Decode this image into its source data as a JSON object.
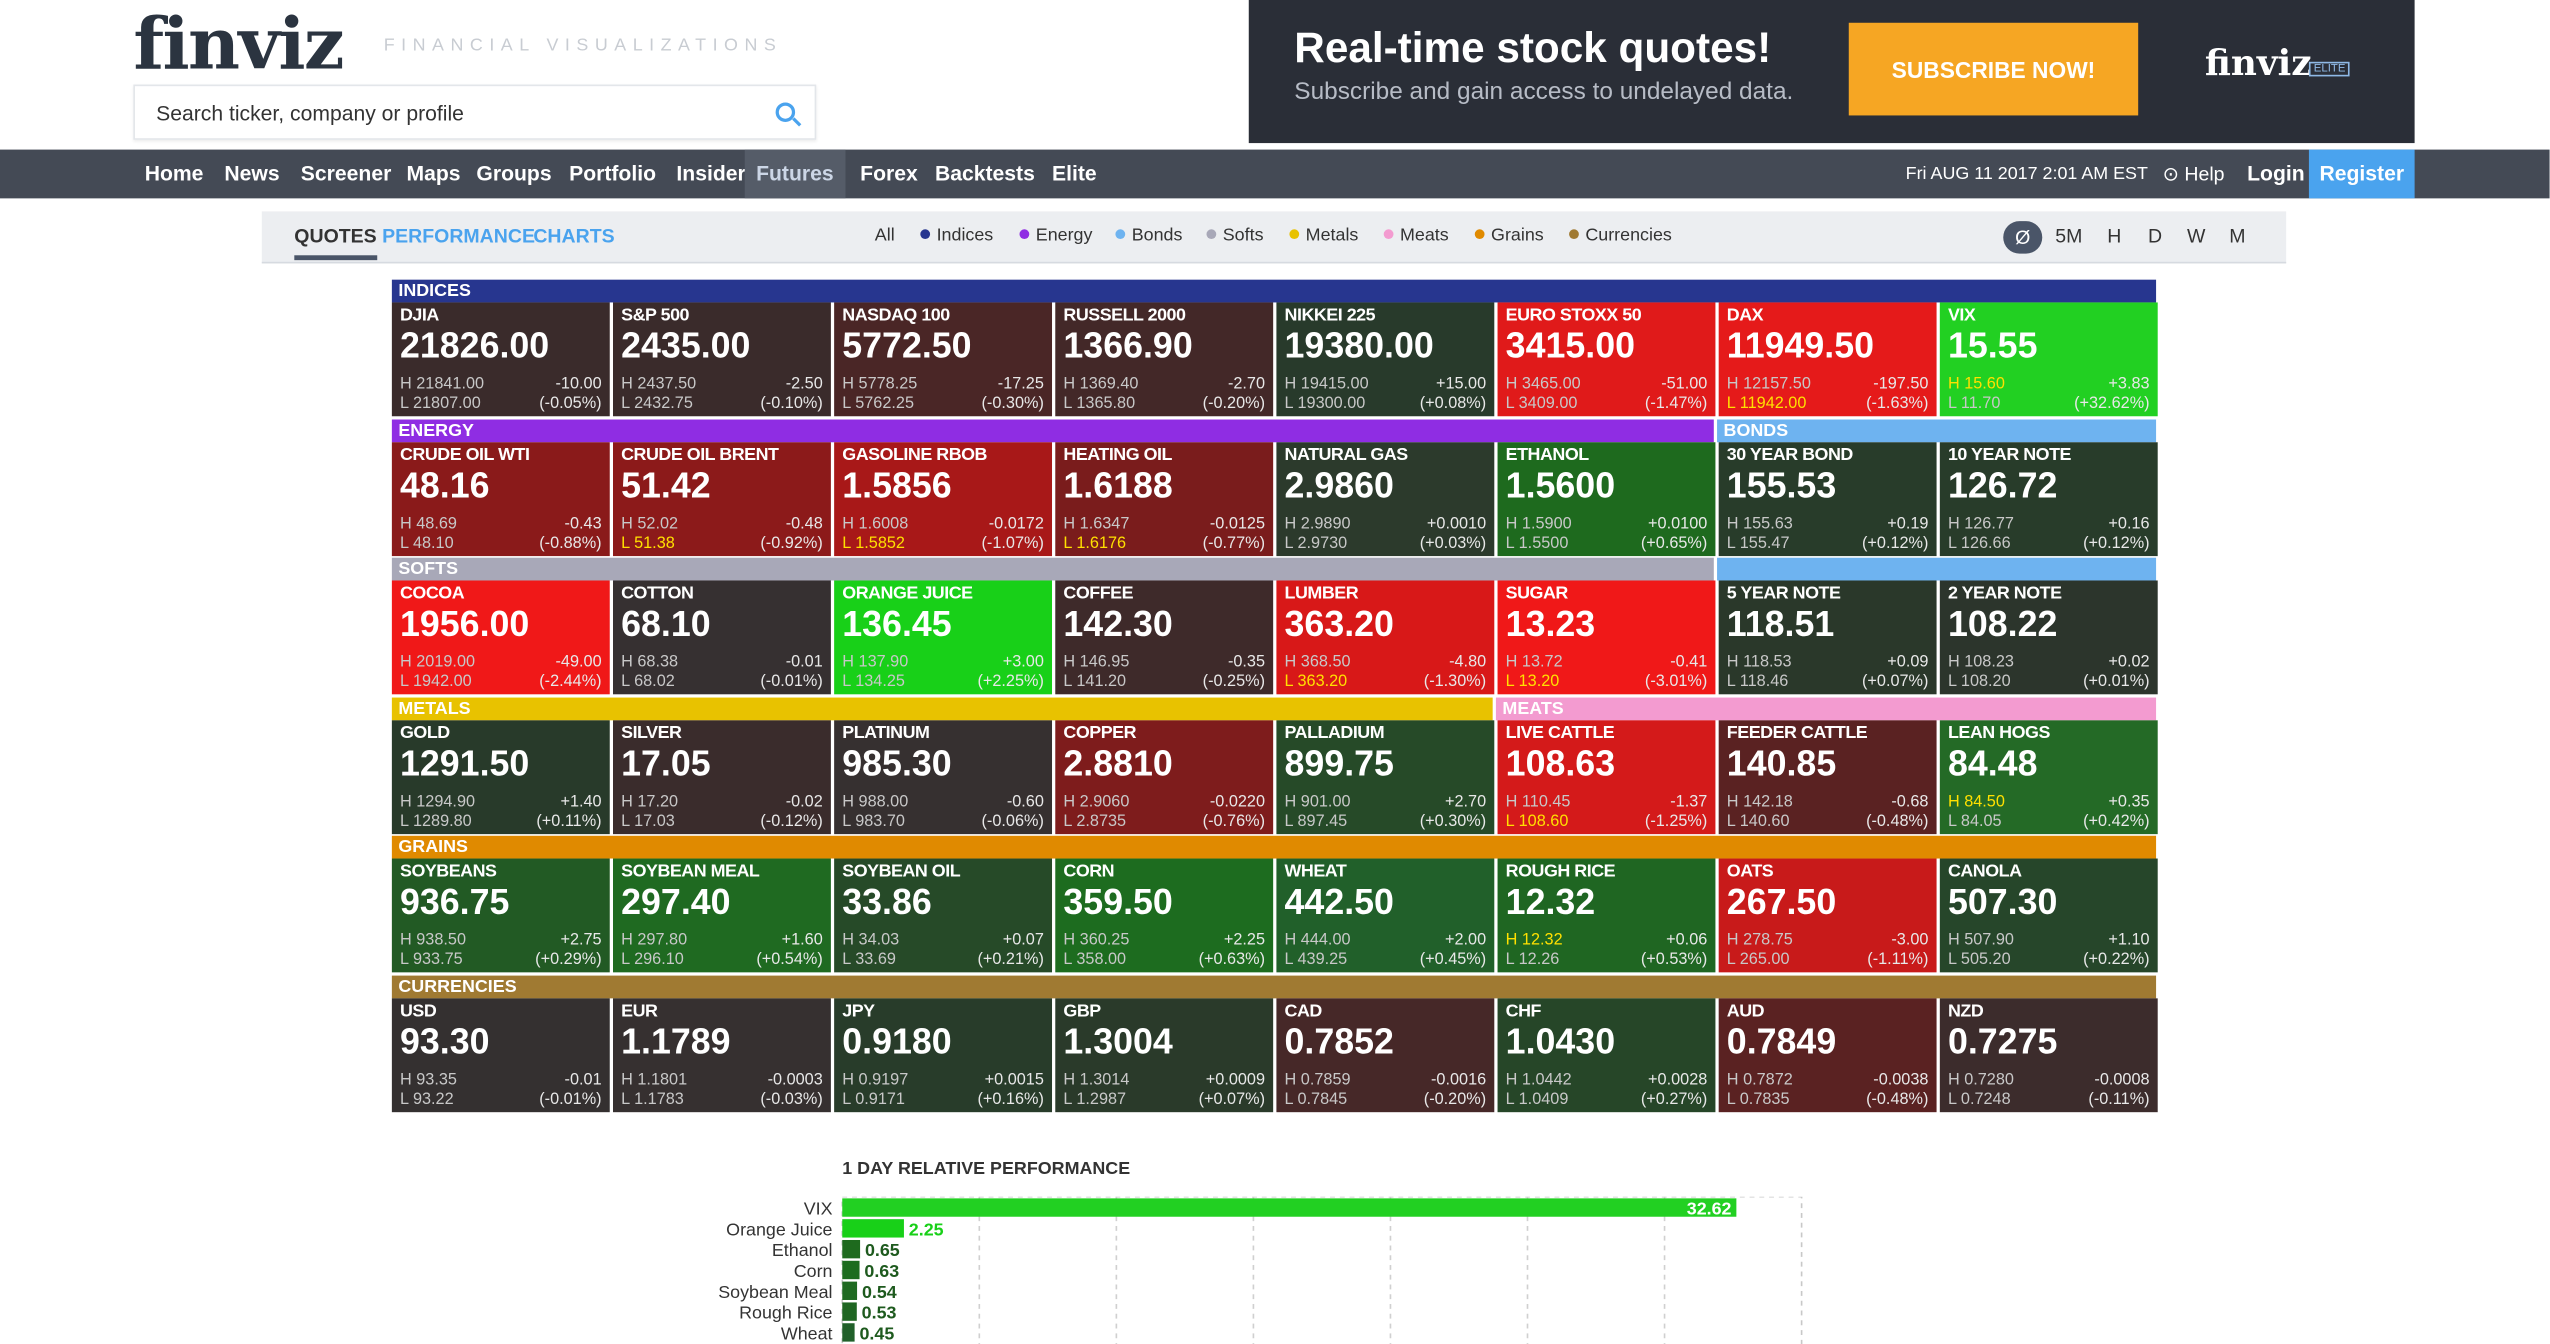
{
  "header": {
    "logo": "finviz",
    "tagline": "FINANCIAL VISUALIZATIONS",
    "search_placeholder": "Search ticker, company or profile"
  },
  "ad": {
    "title": "Real-time stock quotes!",
    "subtitle": "Subscribe and gain access to undelayed data.",
    "button": "SUBSCRIBE NOW!",
    "logo": "finviz",
    "badge": "ELITE"
  },
  "nav": {
    "items": [
      "Home",
      "News",
      "Screener",
      "Maps",
      "Groups",
      "Portfolio",
      "Insider",
      "Futures",
      "Forex",
      "Backtests",
      "Elite"
    ],
    "active": "Futures",
    "datetime": "Fri AUG 11 2017 2:01 AM EST",
    "help": "Help",
    "login": "Login",
    "register": "Register",
    "help_icon": "help-circle-icon"
  },
  "toolbar": {
    "tabs": [
      "QUOTES",
      "PERFORMANCE",
      "CHARTS"
    ],
    "active_tab": "QUOTES",
    "filters": [
      {
        "label": "All",
        "color": ""
      },
      {
        "label": "Indices",
        "color": "#27368f"
      },
      {
        "label": "Energy",
        "color": "#8f2de3"
      },
      {
        "label": "Bonds",
        "color": "#6eb3f0"
      },
      {
        "label": "Softs",
        "color": "#a8a8b8"
      },
      {
        "label": "Metals",
        "color": "#e8c200"
      },
      {
        "label": "Meats",
        "color": "#f39bd0"
      },
      {
        "label": "Grains",
        "color": "#e08a00"
      },
      {
        "label": "Currencies",
        "color": "#a07a32"
      }
    ],
    "timeframes": [
      "Ø",
      "5M",
      "H",
      "D",
      "W",
      "M"
    ],
    "active_timeframe": "Ø"
  },
  "groups": [
    {
      "label": "INDICES",
      "color": "#27368f"
    },
    {
      "label": "ENERGY",
      "color": "#8f2de3"
    },
    {
      "label": "BONDS",
      "color": "#6eb3f0"
    },
    {
      "label": "SOFTS",
      "color": "#a8a8b8"
    },
    {
      "label": "METALS",
      "color": "#e8c200"
    },
    {
      "label": "MEATS",
      "color": "#f39bd0"
    },
    {
      "label": "GRAINS",
      "color": "#e08a00"
    },
    {
      "label": "CURRENCIES",
      "color": "#a07a32"
    }
  ],
  "tiles": [
    {
      "name": "DJIA",
      "price": "21826.00",
      "high": "H 21841.00",
      "low": "L 21807.00",
      "change": "-10.00",
      "pct": "(-0.05%)",
      "bg": "#3a2b2b"
    },
    {
      "name": "S&P 500",
      "price": "2435.00",
      "high": "H 2437.50",
      "low": "L 2432.75",
      "change": "-2.50",
      "pct": "(-0.10%)",
      "bg": "#3a2b2b"
    },
    {
      "name": "NASDAQ 100",
      "price": "5772.50",
      "high": "H 5778.25",
      "low": "L 5762.25",
      "change": "-17.25",
      "pct": "(-0.30%)",
      "bg": "#4a2626"
    },
    {
      "name": "RUSSELL 2000",
      "price": "1366.90",
      "high": "H 1369.40",
      "low": "L 1365.80",
      "change": "-2.70",
      "pct": "(-0.20%)",
      "bg": "#432828"
    },
    {
      "name": "NIKKEI 225",
      "price": "19380.00",
      "high": "H 19415.00",
      "low": "L 19300.00",
      "change": "+15.00",
      "pct": "(+0.08%)",
      "bg": "#283a2b"
    },
    {
      "name": "EURO STOXX 50",
      "price": "3415.00",
      "high": "H 3465.00",
      "low": "L 3409.00",
      "change": "-51.00",
      "pct": "(-1.47%)",
      "bg": "#e01a1a"
    },
    {
      "name": "DAX",
      "price": "11949.50",
      "high": "H 12157.50",
      "low": "L 11942.00",
      "change": "-197.50",
      "pct": "(-1.63%)",
      "bg": "#e51a1a",
      "low_hi": true
    },
    {
      "name": "VIX",
      "price": "15.55",
      "high": "H 15.60",
      "low": "L 11.70",
      "change": "+3.83",
      "pct": "(+32.62%)",
      "bg": "#22d022",
      "high_hi": true
    },
    {
      "name": "CRUDE OIL WTI",
      "price": "48.16",
      "high": "H 48.69",
      "low": "L 48.10",
      "change": "-0.43",
      "pct": "(-0.88%)",
      "bg": "#8a1a1a"
    },
    {
      "name": "CRUDE OIL BRENT",
      "price": "51.42",
      "high": "H 52.02",
      "low": "L 51.38",
      "change": "-0.48",
      "pct": "(-0.92%)",
      "bg": "#8c1a1a",
      "low_hi": true
    },
    {
      "name": "GASOLINE RBOB",
      "price": "1.5856",
      "high": "H 1.6008",
      "low": "L 1.5852",
      "change": "-0.0172",
      "pct": "(-1.07%)",
      "bg": "#a81818",
      "low_hi": true
    },
    {
      "name": "HEATING OIL",
      "price": "1.6188",
      "high": "H 1.6347",
      "low": "L 1.6176",
      "change": "-0.0125",
      "pct": "(-0.77%)",
      "bg": "#7a1c1c",
      "low_hi": true
    },
    {
      "name": "NATURAL GAS",
      "price": "2.9860",
      "high": "H 2.9890",
      "low": "L 2.9730",
      "change": "+0.0010",
      "pct": "(+0.03%)",
      "bg": "#2c3a2c"
    },
    {
      "name": "ETHANOL",
      "price": "1.5600",
      "high": "H 1.5900",
      "low": "L 1.5500",
      "change": "+0.0100",
      "pct": "(+0.65%)",
      "bg": "#1e6a1e"
    },
    {
      "name": "30 YEAR BOND",
      "price": "155.53",
      "high": "H 155.63",
      "low": "L 155.47",
      "change": "+0.19",
      "pct": "(+0.12%)",
      "bg": "#283c2a"
    },
    {
      "name": "10 YEAR NOTE",
      "price": "126.72",
      "high": "H 126.77",
      "low": "L 126.66",
      "change": "+0.16",
      "pct": "(+0.12%)",
      "bg": "#283c2a"
    },
    {
      "name": "COCOA",
      "price": "1956.00",
      "high": "H 2019.00",
      "low": "L 1942.00",
      "change": "-49.00",
      "pct": "(-2.44%)",
      "bg": "#f01818"
    },
    {
      "name": "COTTON",
      "price": "68.10",
      "high": "H 68.38",
      "low": "L 68.02",
      "change": "-0.01",
      "pct": "(-0.01%)",
      "bg": "#363031"
    },
    {
      "name": "ORANGE JUICE",
      "price": "136.45",
      "high": "H 137.90",
      "low": "L 134.25",
      "change": "+3.00",
      "pct": "(+2.25%)",
      "bg": "#18d018"
    },
    {
      "name": "COFFEE",
      "price": "142.30",
      "high": "H 146.95",
      "low": "L 141.20",
      "change": "-0.35",
      "pct": "(-0.25%)",
      "bg": "#3e2a2a"
    },
    {
      "name": "LUMBER",
      "price": "363.20",
      "high": "H 368.50",
      "low": "L 363.20",
      "change": "-4.80",
      "pct": "(-1.30%)",
      "bg": "#d81818",
      "low_hi": true
    },
    {
      "name": "SUGAR",
      "price": "13.23",
      "high": "H 13.72",
      "low": "L 13.20",
      "change": "-0.41",
      "pct": "(-3.01%)",
      "bg": "#f01818",
      "low_hi": true
    },
    {
      "name": "5 YEAR NOTE",
      "price": "118.51",
      "high": "H 118.53",
      "low": "L 118.46",
      "change": "+0.09",
      "pct": "(+0.07%)",
      "bg": "#2a382a"
    },
    {
      "name": "2 YEAR NOTE",
      "price": "108.22",
      "high": "H 108.23",
      "low": "L 108.20",
      "change": "+0.02",
      "pct": "(+0.01%)",
      "bg": "#2c352c"
    },
    {
      "name": "GOLD",
      "price": "1291.50",
      "high": "H 1294.90",
      "low": "L 1289.80",
      "change": "+1.40",
      "pct": "(+0.11%)",
      "bg": "#283a2a"
    },
    {
      "name": "SILVER",
      "price": "17.05",
      "high": "H 17.20",
      "low": "L 17.03",
      "change": "-0.02",
      "pct": "(-0.12%)",
      "bg": "#3a2c2c"
    },
    {
      "name": "PLATINUM",
      "price": "985.30",
      "high": "H 988.00",
      "low": "L 983.70",
      "change": "-0.60",
      "pct": "(-0.06%)",
      "bg": "#363030"
    },
    {
      "name": "COPPER",
      "price": "2.8810",
      "high": "H 2.9060",
      "low": "L 2.8735",
      "change": "-0.0220",
      "pct": "(-0.76%)",
      "bg": "#7e1c1c"
    },
    {
      "name": "PALLADIUM",
      "price": "899.75",
      "high": "H 901.00",
      "low": "L 897.45",
      "change": "+2.70",
      "pct": "(+0.30%)",
      "bg": "#264a28"
    },
    {
      "name": "LIVE CATTLE",
      "price": "108.63",
      "high": "H 110.45",
      "low": "L 108.60",
      "change": "-1.37",
      "pct": "(-1.25%)",
      "bg": "#d41a1a",
      "low_hi": true
    },
    {
      "name": "FEEDER CATTLE",
      "price": "140.85",
      "high": "H 142.18",
      "low": "L 140.60",
      "change": "-0.68",
      "pct": "(-0.48%)",
      "bg": "#5a2222"
    },
    {
      "name": "LEAN HOGS",
      "price": "84.48",
      "high": "H 84.50",
      "low": "L 84.05",
      "change": "+0.35",
      "pct": "(+0.42%)",
      "bg": "#246a26",
      "high_hi": true
    },
    {
      "name": "SOYBEANS",
      "price": "936.75",
      "high": "H 938.50",
      "low": "L 933.75",
      "change": "+2.75",
      "pct": "(+0.29%)",
      "bg": "#225a24"
    },
    {
      "name": "SOYBEAN MEAL",
      "price": "297.40",
      "high": "H 297.80",
      "low": "L 296.10",
      "change": "+1.60",
      "pct": "(+0.54%)",
      "bg": "#1f6a21"
    },
    {
      "name": "SOYBEAN OIL",
      "price": "33.86",
      "high": "H 34.03",
      "low": "L 33.69",
      "change": "+0.07",
      "pct": "(+0.21%)",
      "bg": "#264a28"
    },
    {
      "name": "CORN",
      "price": "359.50",
      "high": "H 360.25",
      "low": "L 358.00",
      "change": "+2.25",
      "pct": "(+0.63%)",
      "bg": "#1d6c1f"
    },
    {
      "name": "WHEAT",
      "price": "442.50",
      "high": "H 444.00",
      "low": "L 439.25",
      "change": "+2.00",
      "pct": "(+0.45%)",
      "bg": "#21602a"
    },
    {
      "name": "ROUGH RICE",
      "price": "12.32",
      "high": "H 12.32",
      "low": "L 12.26",
      "change": "+0.06",
      "pct": "(+0.53%)",
      "bg": "#1f6622",
      "high_hi": true
    },
    {
      "name": "OATS",
      "price": "267.50",
      "high": "H 278.75",
      "low": "L 265.00",
      "change": "-3.00",
      "pct": "(-1.11%)",
      "bg": "#c81a1a"
    },
    {
      "name": "CANOLA",
      "price": "507.30",
      "high": "H 507.90",
      "low": "L 505.20",
      "change": "+1.10",
      "pct": "(+0.22%)",
      "bg": "#26462a"
    },
    {
      "name": "USD",
      "price": "93.30",
      "high": "H 93.35",
      "low": "L 93.22",
      "change": "-0.01",
      "pct": "(-0.01%)",
      "bg": "#343030"
    },
    {
      "name": "EUR",
      "price": "1.1789",
      "high": "H 1.1801",
      "low": "L 1.1783",
      "change": "-0.0003",
      "pct": "(-0.03%)",
      "bg": "#363030"
    },
    {
      "name": "JPY",
      "price": "0.9180",
      "high": "H 0.9197",
      "low": "L 0.9171",
      "change": "+0.0015",
      "pct": "(+0.16%)",
      "bg": "#283c2a"
    },
    {
      "name": "GBP",
      "price": "1.3004",
      "high": "H 1.3014",
      "low": "L 1.2987",
      "change": "+0.0009",
      "pct": "(+0.07%)",
      "bg": "#2a3a2a"
    },
    {
      "name": "CAD",
      "price": "0.7852",
      "high": "H 0.7859",
      "low": "L 0.7845",
      "change": "-0.0016",
      "pct": "(-0.20%)",
      "bg": "#462828"
    },
    {
      "name": "CHF",
      "price": "1.0430",
      "high": "H 1.0442",
      "low": "L 1.0409",
      "change": "+0.0028",
      "pct": "(+0.27%)",
      "bg": "#264628"
    },
    {
      "name": "AUD",
      "price": "0.7849",
      "high": "H 0.7872",
      "low": "L 0.7835",
      "change": "-0.0038",
      "pct": "(-0.48%)",
      "bg": "#5a2222"
    },
    {
      "name": "NZD",
      "price": "0.7275",
      "high": "H 0.7280",
      "low": "L 0.7248",
      "change": "-0.0008",
      "pct": "(-0.11%)",
      "bg": "#3c2c2c"
    }
  ],
  "chart_title": "1 DAY RELATIVE PERFORMANCE",
  "chart_data": {
    "type": "bar",
    "orientation": "horizontal",
    "title": "1 DAY RELATIVE PERFORMANCE",
    "categories": [
      "VIX",
      "Orange Juice",
      "Ethanol",
      "Corn",
      "Soybean Meal",
      "Rough Rice",
      "Wheat"
    ],
    "values": [
      32.62,
      2.25,
      0.65,
      0.63,
      0.54,
      0.53,
      0.45
    ],
    "xlim": [
      0,
      35
    ],
    "grid": true,
    "bar_colors": [
      "#22d022",
      "#18d018",
      "#1e6a1e",
      "#1d6c1f",
      "#1f6a21",
      "#1f6622",
      "#21602a"
    ]
  }
}
